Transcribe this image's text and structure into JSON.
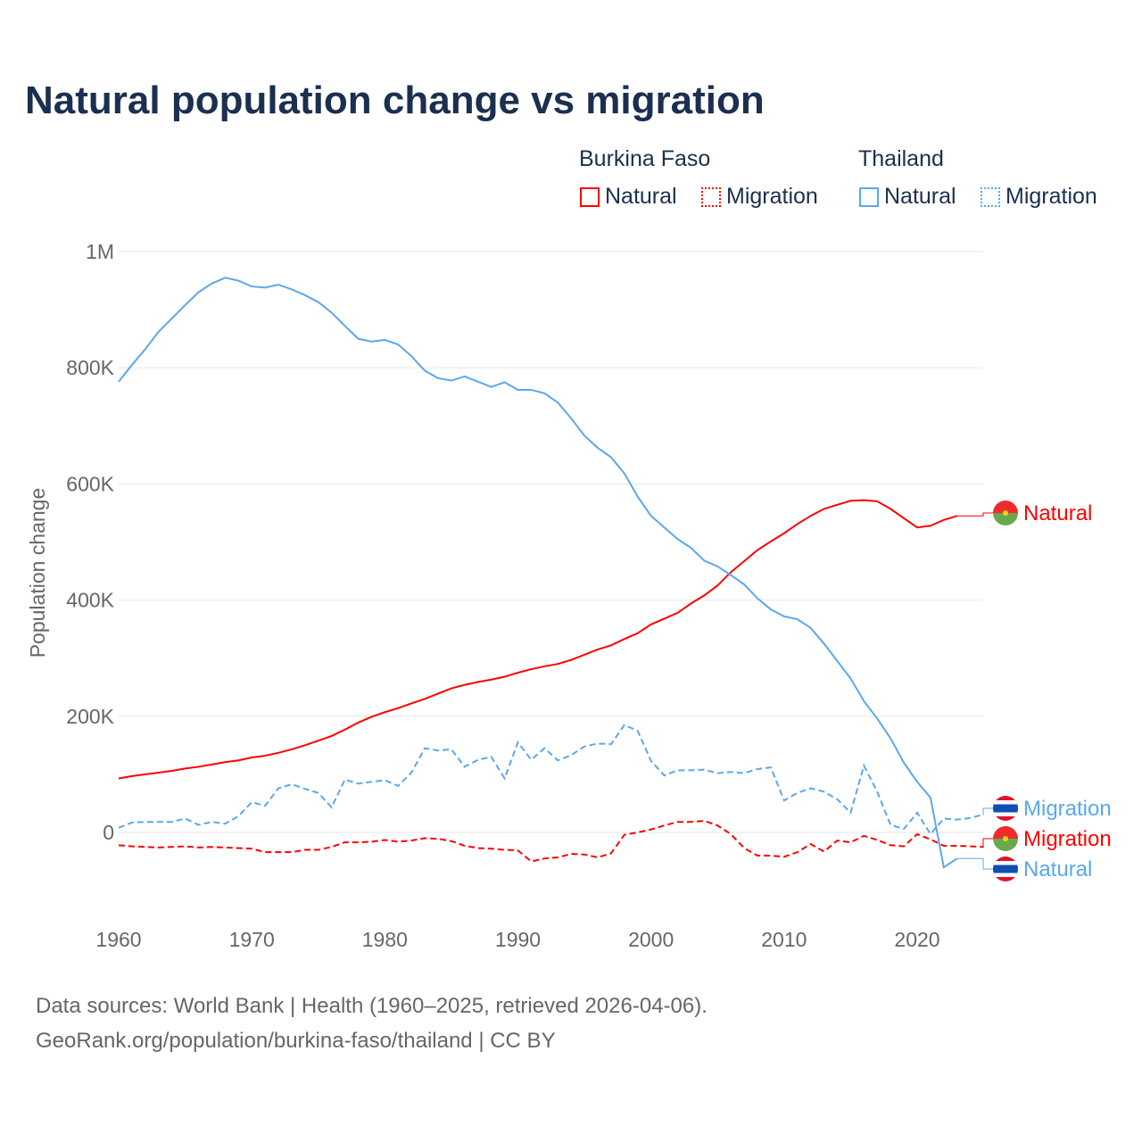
{
  "chart_data": {
    "type": "line",
    "title": "Natural population change vs migration",
    "ylabel": "Population change",
    "xlabel": "",
    "xlim": [
      1960,
      2025
    ],
    "ylim": [
      -100000,
      1000000
    ],
    "x_ticks": [
      "1960",
      "1970",
      "1980",
      "1990",
      "2000",
      "2010",
      "2020"
    ],
    "y_ticks": [
      {
        "v": 0,
        "label": "0"
      },
      {
        "v": 200000,
        "label": "200K"
      },
      {
        "v": 400000,
        "label": "400K"
      },
      {
        "v": 600000,
        "label": "600K"
      },
      {
        "v": 800000,
        "label": "800K"
      },
      {
        "v": 1000000,
        "label": "1M"
      }
    ],
    "grid": true,
    "legend": {
      "placement": "top-right",
      "groups": [
        {
          "name": "Burkina Faso",
          "items": [
            "Natural",
            "Migration"
          ]
        },
        {
          "name": "Thailand",
          "items": [
            "Natural",
            "Migration"
          ]
        }
      ]
    },
    "series": [
      {
        "country": "Burkina Faso",
        "name": "Natural",
        "color": "#ff0000",
        "dash": false,
        "start": 1960,
        "values": [
          93,
          97,
          100,
          103,
          106,
          110,
          113,
          117,
          121,
          124,
          129,
          132,
          137,
          143,
          150,
          158,
          166,
          177,
          189,
          199,
          207,
          214,
          222,
          230,
          239,
          248,
          254,
          259,
          263,
          268,
          275,
          281,
          286,
          290,
          297,
          306,
          315,
          322,
          333,
          343,
          358,
          368,
          378,
          394,
          408,
          425,
          448,
          467,
          486,
          501,
          515,
          531,
          545,
          557,
          564,
          571,
          572,
          570,
          557,
          541,
          525,
          528,
          538,
          545
        ],
        "end_label": "Natural"
      },
      {
        "country": "Burkina Faso",
        "name": "Migration",
        "color": "#ff0000",
        "dash": true,
        "start": 1960,
        "values": [
          -22,
          -24,
          -25,
          -26,
          -25,
          -24,
          -26,
          -25,
          -26,
          -27,
          -28,
          -34,
          -34,
          -34,
          -30,
          -30,
          -25,
          -17,
          -17,
          -16,
          -13,
          -16,
          -14,
          -10,
          -11,
          -15,
          -23,
          -27,
          -28,
          -30,
          -31,
          -50,
          -45,
          -43,
          -37,
          -38,
          -43,
          -36,
          -4,
          0,
          5,
          12,
          18,
          18,
          20,
          12,
          -3,
          -27,
          -40,
          -40,
          -42,
          -34,
          -20,
          -33,
          -14,
          -17,
          -6,
          -13,
          -22,
          -24,
          -3,
          -12,
          -23,
          -23,
          -24,
          -25
        ],
        "end_label": "Migration"
      },
      {
        "country": "Thailand",
        "name": "Natural",
        "color": "#5ba7ee",
        "dash": false,
        "start": 1960,
        "values": [
          776,
          805,
          832,
          862,
          885,
          908,
          930,
          945,
          955,
          950,
          940,
          938,
          943,
          935,
          925,
          913,
          895,
          872,
          850,
          845,
          848,
          840,
          820,
          795,
          782,
          778,
          785,
          776,
          767,
          775,
          762,
          762,
          756,
          740,
          713,
          683,
          662,
          646,
          618,
          578,
          545,
          525,
          505,
          490,
          468,
          458,
          443,
          427,
          403,
          384,
          372,
          367,
          352,
          325,
          295,
          265,
          226,
          196,
          162,
          120,
          87,
          60,
          -60,
          -45
        ],
        "end_label": "Natural"
      },
      {
        "country": "Thailand",
        "name": "Migration",
        "color": "#5ba7ee",
        "dash": true,
        "start": 1960,
        "values": [
          8,
          17,
          18,
          18,
          18,
          24,
          13,
          18,
          15,
          28,
          52,
          46,
          76,
          83,
          75,
          68,
          43,
          91,
          84,
          87,
          90,
          80,
          103,
          145,
          141,
          143,
          113,
          125,
          130,
          93,
          155,
          125,
          145,
          124,
          133,
          148,
          153,
          152,
          185,
          175,
          123,
          98,
          107,
          107,
          108,
          102,
          104,
          102,
          109,
          112,
          55,
          68,
          76,
          70,
          57,
          34,
          115,
          70,
          13,
          6,
          34,
          -3,
          24,
          22,
          25,
          31
        ],
        "end_label": "Migration"
      }
    ],
    "value_unit": "thousands"
  },
  "source_line1": "Data sources: World Bank | Health (1960–2025, retrieved 2026-04-06).",
  "source_line2": "GeoRank.org/population/burkina-faso/thailand | CC BY"
}
